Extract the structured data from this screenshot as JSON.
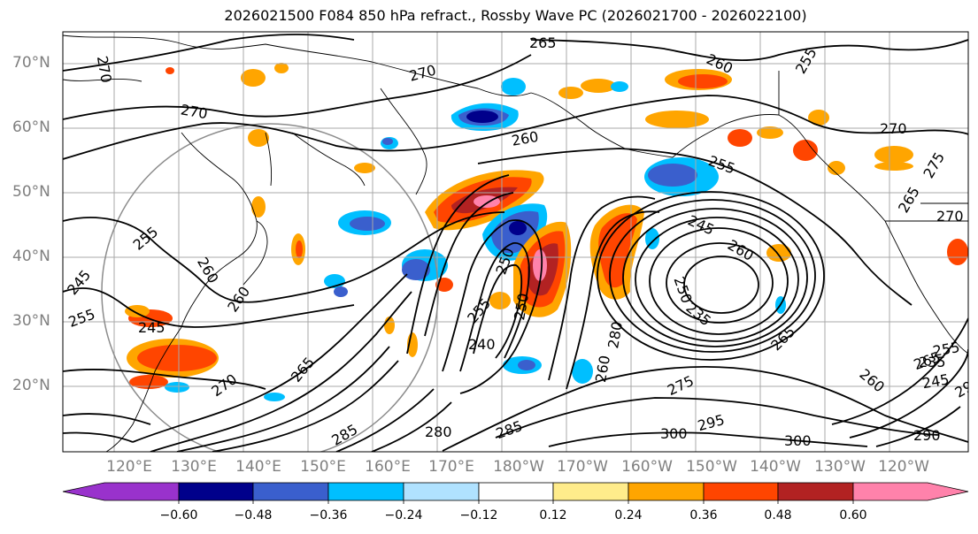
{
  "title": "2026021500 F084 850 hPa refract., Rossby Wave PC (2026021700 - 2026022100)",
  "lat_labels": [
    "70°N",
    "60°N",
    "50°N",
    "40°N",
    "30°N",
    "20°N"
  ],
  "lon_labels": [
    "120°E",
    "130°E",
    "140°E",
    "150°E",
    "160°E",
    "170°E",
    "180°W",
    "170°W",
    "160°W",
    "150°W",
    "140°W",
    "130°W",
    "120°W"
  ],
  "colorbar": {
    "ticks": [
      "−0.60",
      "−0.48",
      "−0.36",
      "−0.24",
      "−0.12",
      "0.12",
      "0.24",
      "0.36",
      "0.48",
      "0.60"
    ],
    "colors": [
      "#9932cc",
      "#00008b",
      "#3a5fcd",
      "#00bfff",
      "#b0e2ff",
      "#ffffff",
      "#ffec8b",
      "#ffa500",
      "#ff4500",
      "#b22222",
      "#ff82ab"
    ]
  },
  "contour_labels": [
    "270",
    "265",
    "270",
    "260",
    "255",
    "270",
    "260",
    "255",
    "270",
    "265",
    "275",
    "255",
    "260",
    "245",
    "255",
    "260",
    "245",
    "250",
    "255",
    "240",
    "250",
    "245",
    "260",
    "265",
    "270",
    "250",
    "235",
    "280",
    "265",
    "235",
    "275",
    "290",
    "260",
    "270",
    "280",
    "285",
    "300",
    "295",
    "300",
    "290",
    "285",
    "260",
    "245",
    "265",
    "255"
  ]
}
